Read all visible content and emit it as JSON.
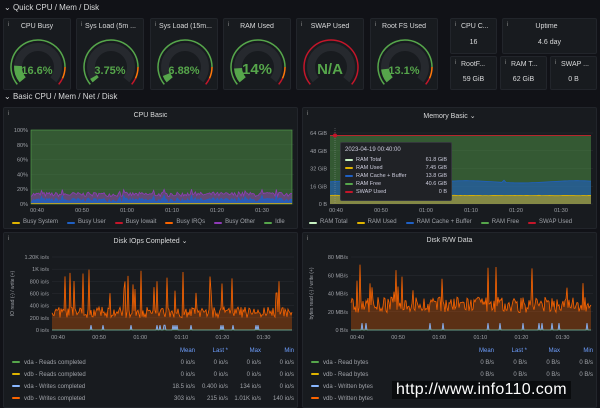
{
  "rows": {
    "quick": "Quick CPU / Mem / Disk",
    "basic": "Basic CPU / Mem / Net / Disk"
  },
  "gauges": [
    {
      "title": "CPU Busy",
      "value": "16.6%",
      "percent": 16.6
    },
    {
      "title": "Sys Load (5m ...",
      "value": "3.75%",
      "percent": 3.75
    },
    {
      "title": "Sys Load (15m...",
      "value": "6.88%",
      "percent": 6.88
    },
    {
      "title": "RAM Used",
      "value": "14%",
      "percent": 14
    },
    {
      "title": "SWAP Used",
      "value": "N/A",
      "percent": null
    },
    {
      "title": "Root FS Used",
      "value": "13.1%",
      "percent": 13.1
    }
  ],
  "stats": [
    {
      "title": "CPU C...",
      "value": "16"
    },
    {
      "title": "Uptime",
      "value": "4.6 day"
    },
    {
      "title": "RootF...",
      "value": "59 GiB"
    },
    {
      "title": "RAM T...",
      "value": "62 GiB"
    },
    {
      "title": "SWAP ...",
      "value": "0 B"
    }
  ],
  "colors": {
    "green": "#56a64b",
    "yellow": "#e0b400",
    "blue": "#1f60c4",
    "red": "#c4162a",
    "orange": "#fa6400",
    "purple": "#8f3bb8",
    "lightblue": "#8ab8ff",
    "lightgreen": "#c8f2c2"
  },
  "time_ticks": [
    "00:40",
    "00:50",
    "01:00",
    "01:10",
    "01:20",
    "01:30"
  ],
  "cpu": {
    "title": "CPU Basic",
    "y_ticks": [
      "100%",
      "80%",
      "60%",
      "40%",
      "20%",
      "0%"
    ],
    "legend": [
      {
        "name": "Busy System",
        "color": "#e0b400"
      },
      {
        "name": "Busy User",
        "color": "#1f60c4"
      },
      {
        "name": "Busy Iowait",
        "color": "#c4162a"
      },
      {
        "name": "Busy IRQs",
        "color": "#fa6400"
      },
      {
        "name": "Busy Other",
        "color": "#8f3bb8"
      },
      {
        "name": "Idle",
        "color": "#56a64b"
      }
    ]
  },
  "memory": {
    "title": "Memory Basic",
    "y_ticks": [
      "64 GiB",
      "48 GiB",
      "32 GiB",
      "16 GiB",
      "0 B"
    ],
    "legend": [
      {
        "name": "RAM Total",
        "color": "#c8f2c2"
      },
      {
        "name": "RAM Used",
        "color": "#e0b400"
      },
      {
        "name": "RAM Cache + Buffer",
        "color": "#1f60c4"
      },
      {
        "name": "RAM Free",
        "color": "#56a64b"
      },
      {
        "name": "SWAP Used",
        "color": "#c4162a"
      }
    ],
    "tooltip": {
      "time": "2023-04-19 00:40:00",
      "rows": [
        {
          "name": "RAM Total",
          "value": "61.8 GiB"
        },
        {
          "name": "RAM Used",
          "value": "7.45 GiB"
        },
        {
          "name": "RAM Cache + Buffer",
          "value": "13.8 GiB"
        },
        {
          "name": "RAM Free",
          "value": "40.6 GiB"
        },
        {
          "name": "SWAP Used",
          "value": "0 B"
        }
      ]
    }
  },
  "iops": {
    "title": "Disk IOps Completed",
    "ylabel": "IO read (-) / write (+)",
    "y_ticks": [
      "1.20K io/s",
      "1K io/s",
      "800 io/s",
      "600 io/s",
      "400 io/s",
      "200 io/s",
      "0 io/s"
    ],
    "columns": [
      "Mean",
      "Last *",
      "Max",
      "Min"
    ],
    "rows": [
      {
        "name": "vda - Reads completed",
        "color": "#56a64b",
        "values": [
          "0 io/s",
          "0 io/s",
          "0 io/s",
          "0 io/s"
        ]
      },
      {
        "name": "vdb - Reads completed",
        "color": "#e0b400",
        "values": [
          "0 io/s",
          "0 io/s",
          "0 io/s",
          "0 io/s"
        ]
      },
      {
        "name": "vda - Writes completed",
        "color": "#8ab8ff",
        "values": [
          "18.5 io/s",
          "0.400 io/s",
          "134 io/s",
          "0 io/s"
        ]
      },
      {
        "name": "vdb - Writes completed",
        "color": "#fa6400",
        "values": [
          "303 io/s",
          "215 io/s",
          "1.01K io/s",
          "140 io/s"
        ]
      }
    ]
  },
  "rw": {
    "title": "Disk R/W Data",
    "ylabel": "bytes read (-) / write (+)",
    "y_ticks": [
      "80 MB/s",
      "60 MB/s",
      "40 MB/s",
      "20 MB/s",
      "0 B/s"
    ],
    "columns": [
      "Mean",
      "Last *",
      "Max",
      "Min"
    ],
    "rows": [
      {
        "name": "vda - Read bytes",
        "color": "#56a64b",
        "values": [
          "0 B/s",
          "0 B/s",
          "0 B/s",
          "0 B/s"
        ]
      },
      {
        "name": "vdb - Read bytes",
        "color": "#e0b400",
        "values": [
          "0 B/s",
          "0 B/s",
          "0 B/s",
          "0 B/s"
        ]
      },
      {
        "name": "vda - Written bytes",
        "color": "#8ab8ff",
        "values": [
          "",
          "",
          "",
          ""
        ]
      },
      {
        "name": "vdb - Written bytes",
        "color": "#fa6400",
        "values": [
          "",
          "",
          "",
          ""
        ]
      }
    ]
  },
  "watermark": "http://www.info110.com"
}
